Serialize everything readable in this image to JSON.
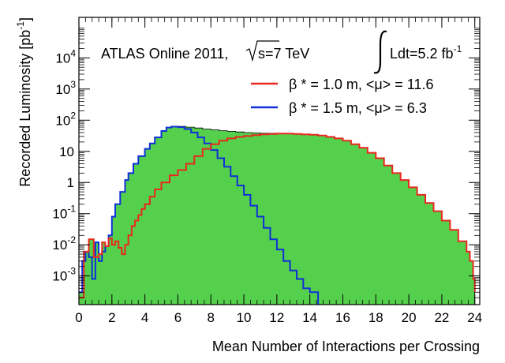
{
  "chart_data": {
    "type": "area",
    "xlabel": "Mean Number of Interactions per Crossing",
    "ylabel": "Recorded Luminosity [pb",
    "ylabel_sup": "-1",
    "ylabel_close": "]",
    "xlim": [
      0,
      24.3
    ],
    "ylim": [
      0.00012,
      200000
    ],
    "yscale": "log",
    "x_ticks": [
      "0",
      "2",
      "4",
      "6",
      "8",
      "10",
      "12",
      "14",
      "16",
      "18",
      "20",
      "22",
      "24"
    ],
    "y_tick_values": [
      0.001,
      0.01,
      0.1,
      1,
      10,
      100,
      1000,
      10000
    ],
    "y_ticks": [
      {
        "base": "10",
        "exp": "-3"
      },
      {
        "base": "10",
        "exp": "-2"
      },
      {
        "base": "10",
        "exp": "-1"
      },
      {
        "base": "1",
        "exp": ""
      },
      {
        "base": "10",
        "exp": ""
      },
      {
        "base": "10",
        "exp": "2"
      },
      {
        "base": "10",
        "exp": "3"
      },
      {
        "base": "10",
        "exp": "4"
      }
    ],
    "annotation": {
      "experiment": "ATLAS Online 2011,",
      "sqrt_s": "s=7 TeV",
      "lumi": "Ldt=5.2 fb",
      "lumi_exp": "-1"
    },
    "series": [
      {
        "name": "β * = 1.0 m, <μ> = 11.6",
        "color": "#e8281e",
        "points": [
          [
            0,
            0.0002
          ],
          [
            0.3,
            0.006
          ],
          [
            0.6,
            0.015
          ],
          [
            0.9,
            0.004
          ],
          [
            1.2,
            0.005
          ],
          [
            1.4,
            0.012
          ],
          [
            1.6,
            0.009
          ],
          [
            1.8,
            0.016
          ],
          [
            2.0,
            0.01
          ],
          [
            2.2,
            0.013
          ],
          [
            2.4,
            0.008
          ],
          [
            2.6,
            0.005
          ],
          [
            2.8,
            0.01
          ],
          [
            3.0,
            0.02
          ],
          [
            3.2,
            0.04
          ],
          [
            3.4,
            0.06
          ],
          [
            3.6,
            0.09
          ],
          [
            3.8,
            0.14
          ],
          [
            4.0,
            0.2
          ],
          [
            4.3,
            0.35
          ],
          [
            4.6,
            0.6
          ],
          [
            5.0,
            1.0
          ],
          [
            5.5,
            1.7
          ],
          [
            6.0,
            2.5
          ],
          [
            6.5,
            4.0
          ],
          [
            7.0,
            7.0
          ],
          [
            7.5,
            12
          ],
          [
            8.0,
            17
          ],
          [
            8.5,
            22
          ],
          [
            9.0,
            26
          ],
          [
            9.5,
            29
          ],
          [
            10.0,
            31
          ],
          [
            10.5,
            33
          ],
          [
            11.0,
            35
          ],
          [
            11.5,
            36
          ],
          [
            12.0,
            37
          ],
          [
            12.5,
            37
          ],
          [
            13.0,
            36
          ],
          [
            13.5,
            35
          ],
          [
            14.0,
            34
          ],
          [
            14.5,
            32
          ],
          [
            15.0,
            29
          ],
          [
            15.5,
            26
          ],
          [
            16.0,
            22
          ],
          [
            16.5,
            17
          ],
          [
            17.0,
            13
          ],
          [
            17.5,
            9
          ],
          [
            18.0,
            6
          ],
          [
            18.5,
            3.5
          ],
          [
            19.0,
            2.0
          ],
          [
            19.5,
            1.2
          ],
          [
            20.0,
            0.7
          ],
          [
            20.5,
            0.4
          ],
          [
            21.0,
            0.22
          ],
          [
            21.5,
            0.12
          ],
          [
            22.0,
            0.06
          ],
          [
            22.5,
            0.03
          ],
          [
            23.0,
            0.013
          ],
          [
            23.5,
            0.006
          ],
          [
            23.7,
            0.003
          ],
          [
            23.9,
            0.0008
          ],
          [
            24.0,
            0.0003
          ]
        ]
      },
      {
        "name": "β * = 1.5 m, <μ> =  6.3",
        "color": "#1030d8",
        "points": [
          [
            0,
            0.0003
          ],
          [
            0.2,
            0.003
          ],
          [
            0.4,
            0.006
          ],
          [
            0.6,
            0.004
          ],
          [
            0.8,
            0.0008
          ],
          [
            1.0,
            0.012
          ],
          [
            1.2,
            0.003
          ],
          [
            1.4,
            0.006
          ],
          [
            1.6,
            0.009
          ],
          [
            1.8,
            0.02
          ],
          [
            2.0,
            0.08
          ],
          [
            2.2,
            0.2
          ],
          [
            2.5,
            0.5
          ],
          [
            2.8,
            1.2
          ],
          [
            3.0,
            2.0
          ],
          [
            3.3,
            4.0
          ],
          [
            3.6,
            7.0
          ],
          [
            4.0,
            12
          ],
          [
            4.3,
            18
          ],
          [
            4.6,
            28
          ],
          [
            5.0,
            45
          ],
          [
            5.3,
            58
          ],
          [
            5.6,
            62
          ],
          [
            6.0,
            60
          ],
          [
            6.4,
            52
          ],
          [
            6.8,
            40
          ],
          [
            7.2,
            28
          ],
          [
            7.6,
            18
          ],
          [
            8.0,
            11
          ],
          [
            8.4,
            6.0
          ],
          [
            8.8,
            3.2
          ],
          [
            9.2,
            1.6
          ],
          [
            9.6,
            0.8
          ],
          [
            10.0,
            0.4
          ],
          [
            10.4,
            0.18
          ],
          [
            10.8,
            0.08
          ],
          [
            11.2,
            0.035
          ],
          [
            11.6,
            0.015
          ],
          [
            12.0,
            0.007
          ],
          [
            12.4,
            0.003
          ],
          [
            12.8,
            0.0015
          ],
          [
            13.2,
            0.0008
          ],
          [
            13.6,
            0.0004
          ],
          [
            14.0,
            0.0003
          ],
          [
            14.5,
            0.0001
          ]
        ]
      },
      {
        "name": "",
        "color": "#55d04c",
        "points": [
          [
            0,
            0.0003
          ],
          [
            0.3,
            0.006
          ],
          [
            0.6,
            0.015
          ],
          [
            0.9,
            0.012
          ],
          [
            1.2,
            0.005
          ],
          [
            1.4,
            0.012
          ],
          [
            1.6,
            0.009
          ],
          [
            1.8,
            0.02
          ],
          [
            2.0,
            0.08
          ],
          [
            2.2,
            0.2
          ],
          [
            2.5,
            0.5
          ],
          [
            2.8,
            1.2
          ],
          [
            3.0,
            2.0
          ],
          [
            3.3,
            4.0
          ],
          [
            3.6,
            7.0
          ],
          [
            4.0,
            12
          ],
          [
            4.3,
            18
          ],
          [
            4.6,
            28
          ],
          [
            5.0,
            45
          ],
          [
            5.3,
            58
          ],
          [
            5.6,
            63
          ],
          [
            6.0,
            63
          ],
          [
            6.5,
            60
          ],
          [
            7.0,
            56
          ],
          [
            7.5,
            52
          ],
          [
            8.0,
            49
          ],
          [
            8.5,
            46
          ],
          [
            9.0,
            44
          ],
          [
            9.5,
            42
          ],
          [
            10.0,
            40
          ],
          [
            10.5,
            39
          ],
          [
            11.0,
            38
          ],
          [
            11.5,
            38
          ],
          [
            12.0,
            37
          ],
          [
            12.5,
            37
          ],
          [
            13.0,
            36
          ],
          [
            13.5,
            35
          ],
          [
            14.0,
            34
          ],
          [
            14.5,
            32
          ],
          [
            15.0,
            29
          ],
          [
            15.5,
            26
          ],
          [
            16.0,
            22
          ],
          [
            16.5,
            17
          ],
          [
            17.0,
            13
          ],
          [
            17.5,
            9
          ],
          [
            18.0,
            6
          ],
          [
            18.5,
            3.5
          ],
          [
            19.0,
            2.0
          ],
          [
            19.5,
            1.2
          ],
          [
            20.0,
            0.7
          ],
          [
            20.5,
            0.4
          ],
          [
            21.0,
            0.22
          ],
          [
            21.5,
            0.12
          ],
          [
            22.0,
            0.06
          ],
          [
            22.5,
            0.03
          ],
          [
            23.0,
            0.013
          ],
          [
            23.5,
            0.006
          ],
          [
            23.7,
            0.003
          ],
          [
            23.9,
            0.0008
          ],
          [
            24.0,
            0.0003
          ]
        ]
      }
    ]
  }
}
